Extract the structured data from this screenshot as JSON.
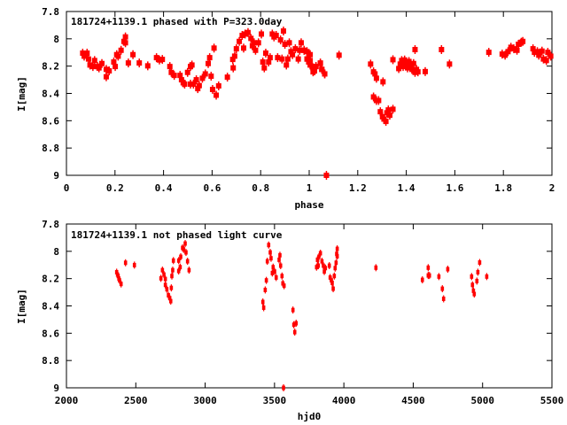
{
  "chart_data": [
    {
      "type": "scatter",
      "title": "181724+1139.1 phased with P=323.0day",
      "xlabel": "phase",
      "ylabel": "I[mag]",
      "xlim": [
        0,
        2
      ],
      "ylim": [
        7.8,
        9
      ],
      "y_inverted": true,
      "xticks": [
        "0",
        "0.2",
        "0.4",
        "0.6",
        "0.8",
        "1",
        "1.2",
        "1.4",
        "1.6",
        "1.8",
        "2"
      ],
      "xtick_values": [
        0,
        0.2,
        0.4,
        0.6,
        0.8,
        1,
        1.2,
        1.4,
        1.6,
        1.8,
        2
      ],
      "yticks": [
        "7.8",
        "8",
        "8.2",
        "8.4",
        "8.6",
        "8.8",
        "9"
      ],
      "ytick_values": [
        7.8,
        8,
        8.2,
        8.4,
        8.6,
        8.8,
        9
      ],
      "color": "#ff0000",
      "points": [
        [
          0.067,
          8.105
        ],
        [
          0.085,
          8.105
        ],
        [
          0.073,
          8.127
        ],
        [
          0.091,
          8.148
        ],
        [
          0.097,
          8.192
        ],
        [
          0.109,
          8.203
        ],
        [
          0.116,
          8.159
        ],
        [
          0.128,
          8.203
        ],
        [
          0.134,
          8.213
        ],
        [
          0.146,
          8.181
        ],
        [
          0.164,
          8.278
        ],
        [
          0.164,
          8.224
        ],
        [
          0.176,
          8.235
        ],
        [
          0.195,
          8.17
        ],
        [
          0.201,
          8.203
        ],
        [
          0.207,
          8.116
        ],
        [
          0.213,
          8.127
        ],
        [
          0.225,
          8.084
        ],
        [
          0.237,
          8.019
        ],
        [
          0.243,
          7.986
        ],
        [
          0.243,
          8.029
        ],
        [
          0.255,
          8.177
        ],
        [
          0.274,
          8.116
        ],
        [
          0.3,
          8.177
        ],
        [
          0.335,
          8.198
        ],
        [
          0.371,
          8.138
        ],
        [
          0.383,
          8.155
        ],
        [
          0.395,
          8.151
        ],
        [
          0.426,
          8.203
        ],
        [
          0.432,
          8.246
        ],
        [
          0.444,
          8.268
        ],
        [
          0.468,
          8.268
        ],
        [
          0.474,
          8.3
        ],
        [
          0.481,
          8.322
        ],
        [
          0.487,
          8.332
        ],
        [
          0.511,
          8.332
        ],
        [
          0.517,
          8.192
        ],
        [
          0.511,
          8.203
        ],
        [
          0.499,
          8.246
        ],
        [
          0.523,
          8.332
        ],
        [
          0.535,
          8.3
        ],
        [
          0.541,
          8.365
        ],
        [
          0.547,
          8.343
        ],
        [
          0.56,
          8.289
        ],
        [
          0.572,
          8.257
        ],
        [
          0.584,
          8.181
        ],
        [
          0.59,
          8.138
        ],
        [
          0.596,
          8.274
        ],
        [
          0.602,
          8.371
        ],
        [
          0.608,
          8.068
        ],
        [
          0.617,
          8.413
        ],
        [
          0.627,
          8.345
        ],
        [
          0.663,
          8.281
        ],
        [
          0.685,
          8.151
        ],
        [
          0.687,
          8.213
        ],
        [
          0.693,
          8.127
        ],
        [
          0.7,
          8.073
        ],
        [
          0.712,
          8.019
        ],
        [
          0.724,
          7.975
        ],
        [
          0.73,
          8.068
        ],
        [
          0.736,
          7.965
        ],
        [
          0.748,
          7.954
        ],
        [
          0.76,
          7.997
        ],
        [
          0.766,
          8.051
        ],
        [
          0.773,
          8.029
        ],
        [
          0.779,
          8.084
        ],
        [
          0.791,
          8.029
        ],
        [
          0.803,
          7.965
        ],
        [
          0.809,
          8.17
        ],
        [
          0.815,
          8.213
        ],
        [
          0.821,
          8.105
        ],
        [
          0.833,
          8.17
        ],
        [
          0.839,
          8.138
        ],
        [
          0.848,
          7.965
        ],
        [
          0.855,
          7.986
        ],
        [
          0.864,
          7.975
        ],
        [
          0.87,
          8.138
        ],
        [
          0.882,
          8.008
        ],
        [
          0.888,
          8.148
        ],
        [
          0.894,
          7.943
        ],
        [
          0.9,
          8.04
        ],
        [
          0.906,
          8.192
        ],
        [
          0.912,
          8.148
        ],
        [
          0.918,
          8.029
        ],
        [
          0.925,
          8.094
        ],
        [
          0.931,
          8.116
        ],
        [
          0.943,
          8.073
        ],
        [
          0.955,
          8.148
        ],
        [
          0.961,
          8.084
        ],
        [
          0.967,
          8.029
        ],
        [
          0.979,
          8.084
        ],
        [
          0.991,
          8.148
        ],
        [
          0.998,
          8.17
        ],
        [
          1.004,
          8.116
        ],
        [
          1.016,
          8.213
        ],
        [
          1.022,
          8.235
        ],
        [
          1.028,
          8.203
        ],
        [
          1.046,
          8.181
        ],
        [
          1.052,
          8.224
        ],
        [
          1.064,
          8.257
        ],
        [
          1.071,
          9.0
        ],
        [
          0.979,
          8.084
        ],
        [
          0.991,
          8.094
        ],
        [
          0.991,
          8.148
        ],
        [
          1.004,
          8.159
        ],
        [
          1.004,
          8.192
        ],
        [
          1.016,
          8.213
        ],
        [
          1.016,
          8.242
        ],
        [
          1.028,
          8.203
        ],
        [
          1.046,
          8.177
        ],
        [
          1.052,
          8.224
        ],
        [
          1.064,
          8.257
        ],
        [
          1.123,
          8.12
        ],
        [
          1.253,
          8.185
        ],
        [
          1.265,
          8.242
        ],
        [
          1.271,
          8.257
        ],
        [
          1.277,
          8.289
        ],
        [
          1.265,
          8.426
        ],
        [
          1.277,
          8.452
        ],
        [
          1.286,
          8.452
        ],
        [
          1.293,
          8.534
        ],
        [
          1.302,
          8.571
        ],
        [
          1.308,
          8.588
        ],
        [
          1.316,
          8.605
        ],
        [
          1.32,
          8.542
        ],
        [
          1.326,
          8.521
        ],
        [
          1.332,
          8.56
        ],
        [
          1.345,
          8.516
        ],
        [
          1.304,
          8.315
        ],
        [
          1.345,
          8.153
        ],
        [
          1.369,
          8.218
        ],
        [
          1.375,
          8.185
        ],
        [
          1.381,
          8.159
        ],
        [
          1.387,
          8.203
        ],
        [
          1.393,
          8.155
        ],
        [
          1.399,
          8.181
        ],
        [
          1.405,
          8.213
        ],
        [
          1.411,
          8.166
        ],
        [
          1.417,
          8.203
        ],
        [
          1.423,
          8.224
        ],
        [
          1.43,
          8.181
        ],
        [
          1.436,
          8.246
        ],
        [
          1.436,
          8.079
        ],
        [
          1.442,
          8.224
        ],
        [
          1.448,
          8.242
        ],
        [
          1.478,
          8.24
        ],
        [
          1.545,
          8.079
        ],
        [
          1.578,
          8.185
        ],
        [
          1.74,
          8.099
        ],
        [
          1.795,
          8.112
        ],
        [
          1.807,
          8.12
        ],
        [
          1.819,
          8.094
        ],
        [
          1.831,
          8.062
        ],
        [
          1.843,
          8.073
        ],
        [
          1.856,
          8.084
        ],
        [
          1.862,
          8.04
        ],
        [
          1.874,
          8.025
        ],
        [
          1.88,
          8.019
        ],
        [
          1.922,
          8.073
        ],
        [
          1.928,
          8.099
        ],
        [
          1.94,
          8.094
        ],
        [
          1.946,
          8.12
        ],
        [
          1.959,
          8.09
        ],
        [
          1.965,
          8.148
        ],
        [
          1.977,
          8.159
        ],
        [
          1.983,
          8.099
        ],
        [
          1.995,
          8.127
        ]
      ]
    },
    {
      "type": "scatter",
      "title": "181724+1139.1 not phased light curve",
      "xlabel": "hjd0",
      "ylabel": "I[mag]",
      "xlim": [
        2000,
        5500
      ],
      "ylim": [
        7.8,
        9
      ],
      "y_inverted": true,
      "xticks": [
        "2000",
        "2500",
        "3000",
        "3500",
        "4000",
        "4500",
        "5000",
        "5500"
      ],
      "xtick_values": [
        2000,
        2500,
        3000,
        3500,
        4000,
        4500,
        5000,
        5500
      ],
      "yticks": [
        "7.8",
        "8",
        "8.2",
        "8.4",
        "8.6",
        "8.8",
        "9"
      ],
      "ytick_values": [
        7.8,
        8,
        8.2,
        8.4,
        8.6,
        8.8,
        9
      ],
      "color": "#ff0000",
      "points": [
        [
          2362,
          8.153
        ],
        [
          2373,
          8.181
        ],
        [
          2383,
          8.213
        ],
        [
          2394,
          8.239
        ],
        [
          2368,
          8.17
        ],
        [
          2378,
          8.2
        ],
        [
          2426,
          8.084
        ],
        [
          2490,
          8.101
        ],
        [
          2681,
          8.198
        ],
        [
          2692,
          8.138
        ],
        [
          2703,
          8.17
        ],
        [
          2713,
          8.203
        ],
        [
          2713,
          8.246
        ],
        [
          2724,
          8.278
        ],
        [
          2735,
          8.322
        ],
        [
          2745,
          8.343
        ],
        [
          2752,
          8.365
        ],
        [
          2756,
          8.268
        ],
        [
          2760,
          8.181
        ],
        [
          2766,
          8.138
        ],
        [
          2771,
          8.068
        ],
        [
          2809,
          8.144
        ],
        [
          2809,
          8.068
        ],
        [
          2820,
          8.116
        ],
        [
          2824,
          8.04
        ],
        [
          2837,
          7.975
        ],
        [
          2845,
          7.986
        ],
        [
          2856,
          7.943
        ],
        [
          2862,
          8.008
        ],
        [
          2873,
          8.073
        ],
        [
          2884,
          8.138
        ],
        [
          3416,
          8.371
        ],
        [
          3422,
          8.413
        ],
        [
          3433,
          8.283
        ],
        [
          3441,
          8.213
        ],
        [
          3448,
          8.073
        ],
        [
          3458,
          7.954
        ],
        [
          3469,
          8.008
        ],
        [
          3475,
          8.051
        ],
        [
          3484,
          8.159
        ],
        [
          3490,
          8.116
        ],
        [
          3501,
          8.148
        ],
        [
          3512,
          8.192
        ],
        [
          3533,
          8.062
        ],
        [
          3539,
          8.029
        ],
        [
          3544,
          8.105
        ],
        [
          3554,
          8.181
        ],
        [
          3560,
          8.235
        ],
        [
          3569,
          8.252
        ],
        [
          3565,
          9.0
        ],
        [
          3633,
          8.43
        ],
        [
          3639,
          8.538
        ],
        [
          3646,
          8.592
        ],
        [
          3656,
          8.527
        ],
        [
          3810,
          8.062
        ],
        [
          3816,
          8.105
        ],
        [
          3803,
          8.116
        ],
        [
          3810,
          8.062
        ],
        [
          3820,
          8.04
        ],
        [
          3831,
          8.014
        ],
        [
          3842,
          8.073
        ],
        [
          3852,
          8.105
        ],
        [
          3859,
          8.148
        ],
        [
          3867,
          8.123
        ],
        [
          3895,
          8.105
        ],
        [
          3901,
          8.192
        ],
        [
          3910,
          8.213
        ],
        [
          3916,
          8.231
        ],
        [
          3923,
          8.274
        ],
        [
          3931,
          8.181
        ],
        [
          3937,
          8.123
        ],
        [
          3944,
          8.084
        ],
        [
          3948,
          8.019
        ],
        [
          3952,
          7.982
        ],
        [
          3952,
          8.036
        ],
        [
          4231,
          8.12
        ],
        [
          4566,
          8.209
        ],
        [
          4608,
          8.12
        ],
        [
          4608,
          8.177
        ],
        [
          4617,
          8.177
        ],
        [
          4685,
          8.185
        ],
        [
          4710,
          8.274
        ],
        [
          4719,
          8.348
        ],
        [
          4749,
          8.131
        ],
        [
          4921,
          8.185
        ],
        [
          4927,
          8.246
        ],
        [
          4934,
          8.289
        ],
        [
          4940,
          8.313
        ],
        [
          4959,
          8.218
        ],
        [
          4966,
          8.153
        ],
        [
          4979,
          8.082
        ],
        [
          5030,
          8.185
        ]
      ]
    }
  ]
}
